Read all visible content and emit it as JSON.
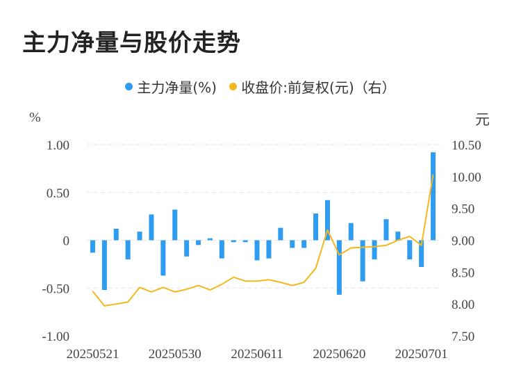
{
  "title": "主力净量与股价走势",
  "legend": {
    "net_label": "主力净量(%)",
    "price_label": "收盘价:前复权(元)（右）"
  },
  "colors": {
    "bar": "#2e9cf0",
    "line": "#f5b71e",
    "grid": "#e5e5e5"
  },
  "chart_data": {
    "type": "bar",
    "left_axis": {
      "unit": "%",
      "ylim": [
        -1.0,
        1.0
      ],
      "ticks": [
        "1.00",
        "0.50",
        "0",
        "-0.50",
        "-1.00"
      ],
      "tick_values": [
        1.0,
        0.5,
        0,
        -0.5,
        -1.0
      ]
    },
    "right_axis": {
      "unit": "元",
      "ylim": [
        7.5,
        10.5
      ],
      "ticks": [
        "10.50",
        "10.00",
        "9.50",
        "9.00",
        "8.50",
        "8.00",
        "7.50"
      ],
      "tick_values": [
        10.5,
        10.0,
        9.5,
        9.0,
        8.5,
        8.0,
        7.5
      ]
    },
    "x_tick_labels": [
      "20250521",
      "20250530",
      "20250611",
      "20250620",
      "20250701"
    ],
    "x_tick_indices": [
      0,
      7,
      14,
      21,
      28
    ],
    "grid": true,
    "legend_position": "top",
    "series": [
      {
        "name": "主力净量(%)",
        "type": "bar",
        "axis": "left",
        "values": [
          -0.13,
          -0.52,
          0.12,
          -0.2,
          0.09,
          0.27,
          -0.37,
          0.32,
          -0.17,
          -0.05,
          0.02,
          -0.19,
          -0.02,
          -0.02,
          -0.21,
          -0.19,
          0.13,
          -0.08,
          -0.08,
          0.28,
          0.42,
          -0.57,
          0.18,
          -0.43,
          -0.2,
          0.22,
          0.09,
          -0.2,
          -0.28,
          0.92
        ]
      },
      {
        "name": "收盘价:前复权(元)（右）",
        "type": "line",
        "axis": "right",
        "values": [
          8.2,
          7.97,
          8.0,
          8.03,
          8.26,
          8.19,
          8.26,
          8.19,
          8.23,
          8.29,
          8.22,
          8.31,
          8.42,
          8.36,
          8.36,
          8.38,
          8.34,
          8.29,
          8.34,
          8.56,
          9.16,
          8.77,
          8.88,
          8.89,
          8.9,
          8.92,
          9.0,
          9.06,
          8.92,
          10.03
        ]
      }
    ]
  }
}
